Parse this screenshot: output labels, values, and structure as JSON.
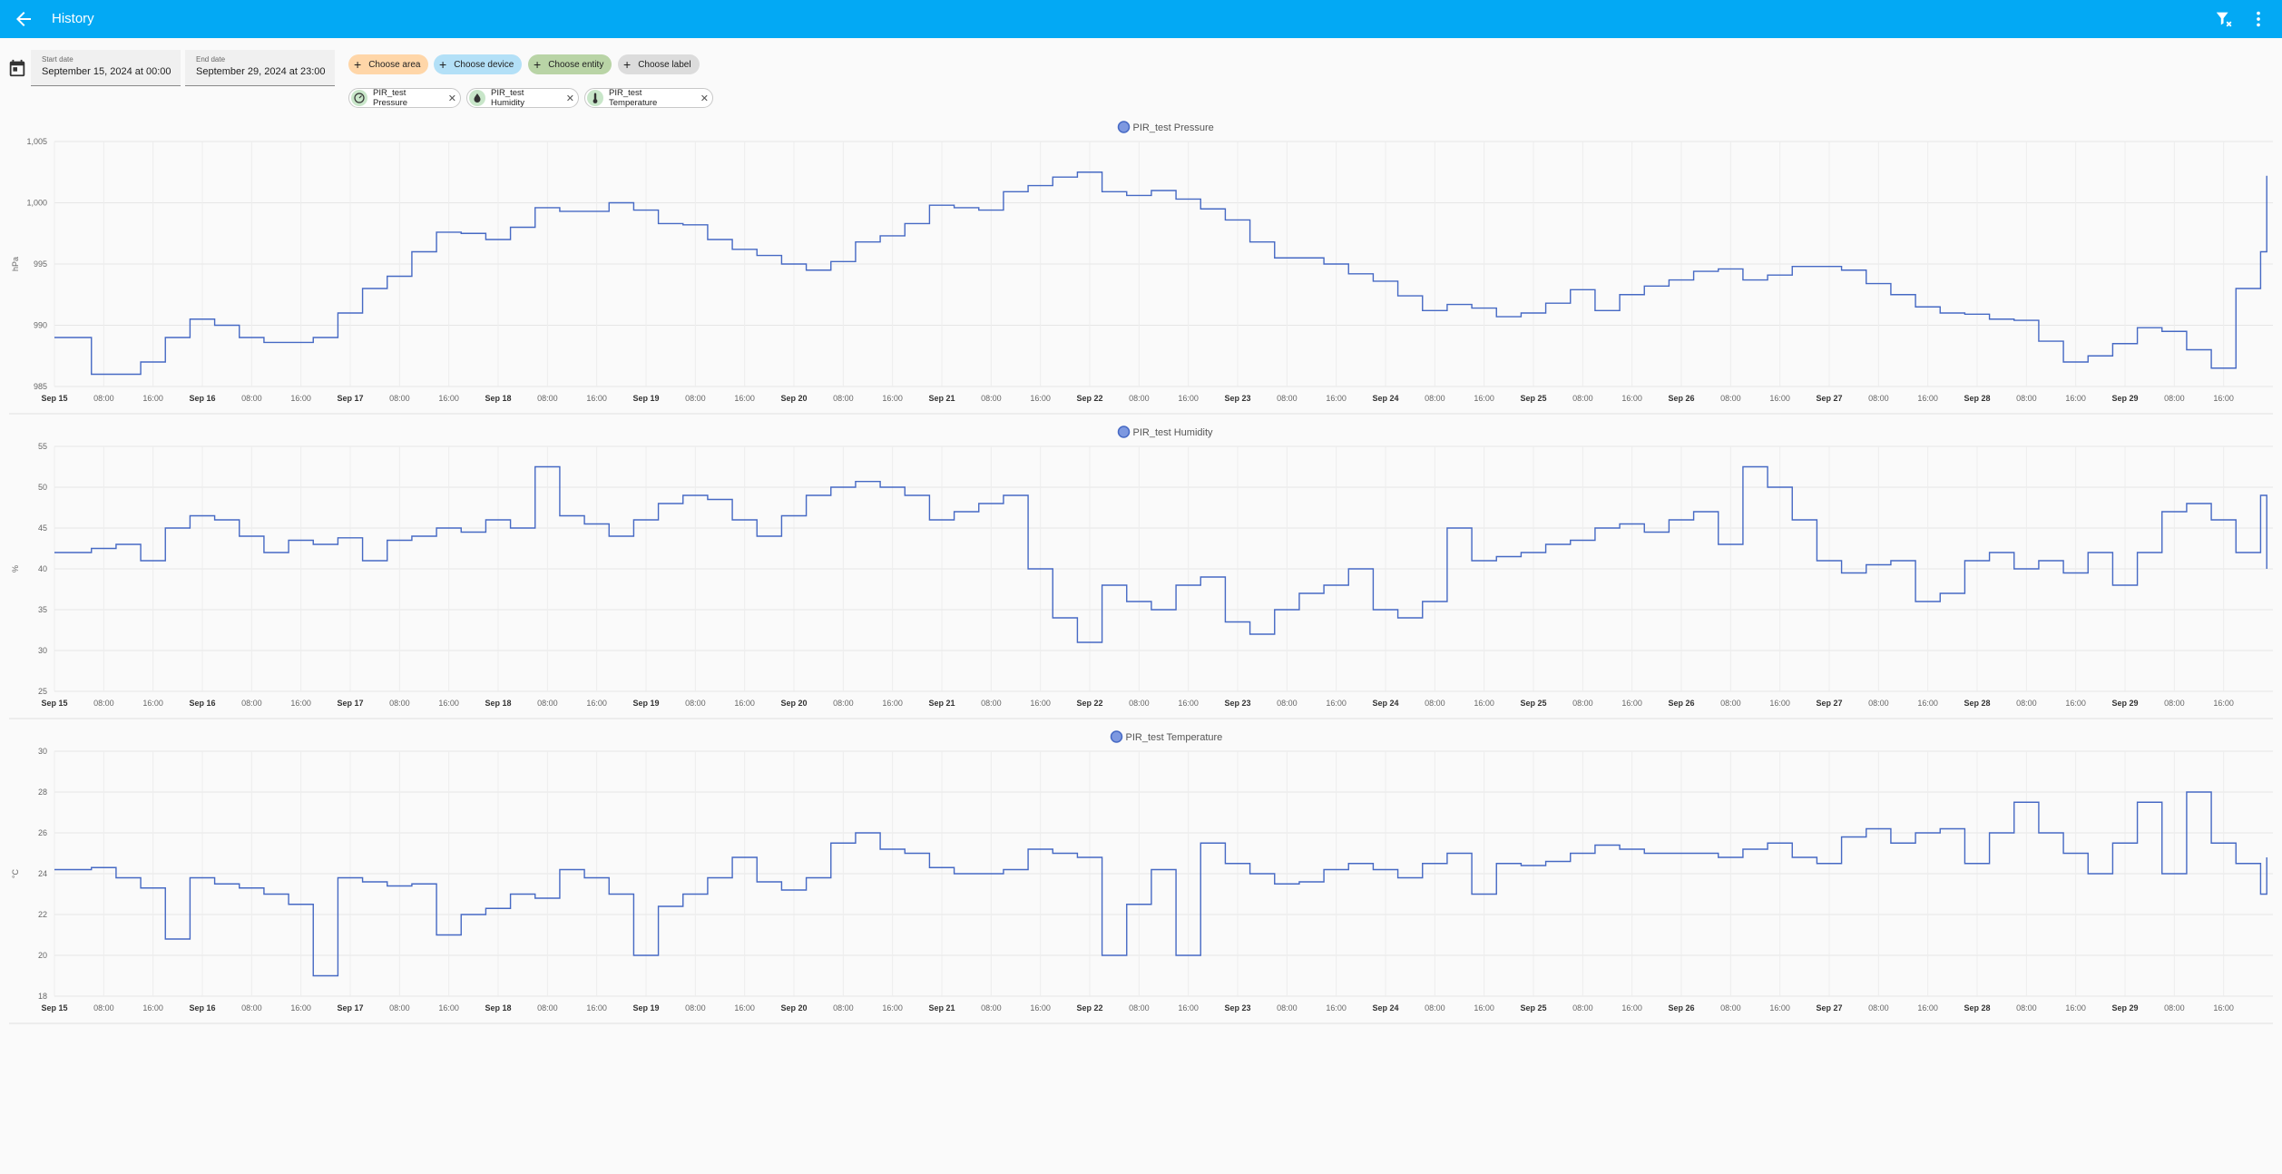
{
  "header": {
    "title": "History",
    "back_icon": "arrow-left-icon",
    "filter_icon": "filter-remove-icon",
    "more_icon": "dots-vertical-icon",
    "bg_color": "#03a9f4"
  },
  "controls": {
    "start_date": {
      "label": "Start date",
      "value": "September 15, 2024 at 00:00"
    },
    "end_date": {
      "label": "End date",
      "value": "September 29, 2024 at 23:00"
    },
    "chips": [
      {
        "label": "Choose area",
        "color": "#ffd6a8"
      },
      {
        "label": "Choose device",
        "color": "#b3e0f7"
      },
      {
        "label": "Choose entity",
        "color": "#b9d4a6"
      },
      {
        "label": "Choose label",
        "color": "#dcdcdc"
      }
    ],
    "entities": [
      {
        "label": "PIR_test Pressure",
        "icon": "gauge-icon"
      },
      {
        "label": "PIR_test Humidity",
        "icon": "water-drop-icon"
      },
      {
        "label": "PIR_test Temperature",
        "icon": "thermometer-icon"
      }
    ]
  },
  "chart_data": [
    {
      "type": "line",
      "title": "PIR_test Pressure",
      "ylabel": "hPa",
      "ylim": [
        985,
        1005
      ],
      "yticks": [
        "985",
        "990",
        "995",
        "1,000",
        "1,005"
      ],
      "xticks": [
        "Sep 15",
        "08:00",
        "16:00",
        "Sep 16",
        "08:00",
        "16:00",
        "Sep 17",
        "08:00",
        "16:00",
        "Sep 18",
        "08:00",
        "16:00",
        "Sep 19",
        "08:00",
        "16:00",
        "Sep 20",
        "08:00",
        "16:00",
        "Sep 21",
        "08:00",
        "16:00",
        "Sep 22",
        "08:00",
        "16:00",
        "Sep 23",
        "08:00",
        "16:00",
        "Sep 24",
        "08:00",
        "16:00",
        "Sep 25",
        "08:00",
        "16:00",
        "Sep 26",
        "08:00",
        "16:00",
        "Sep 27",
        "08:00",
        "16:00",
        "Sep 28",
        "08:00",
        "16:00",
        "Sep 29",
        "08:00",
        "16:00"
      ],
      "x_hours": [
        0,
        6,
        10,
        14,
        18,
        22,
        26,
        30,
        34,
        38,
        42,
        46,
        50,
        54,
        58,
        62,
        66,
        70,
        74,
        78,
        82,
        86,
        90,
        94,
        98,
        102,
        106,
        110,
        114,
        118,
        122,
        126,
        130,
        134,
        138,
        142,
        146,
        150,
        154,
        158,
        162,
        166,
        170,
        174,
        178,
        182,
        186,
        190,
        194,
        198,
        202,
        206,
        210,
        214,
        218,
        222,
        226,
        230,
        234,
        238,
        242,
        246,
        250,
        254,
        258,
        262,
        266,
        270,
        274,
        278,
        282,
        286,
        290,
        294,
        298,
        302,
        306,
        310,
        314,
        318,
        322,
        326,
        330,
        334,
        338,
        342,
        346,
        350,
        354,
        358,
        359
      ],
      "series": [
        {
          "name": "PIR_test Pressure",
          "color": "#4669c4",
          "values": [
            989,
            986,
            986,
            987,
            989,
            990.5,
            990,
            989,
            988.6,
            988.6,
            989,
            991,
            993,
            994,
            996,
            997.6,
            997.5,
            997,
            998,
            999.6,
            999.3,
            999.3,
            1000,
            999.4,
            998.3,
            998.2,
            997,
            996.2,
            995.7,
            995,
            994.5,
            995.2,
            996.8,
            997.3,
            998.3,
            999.8,
            999.6,
            999.4,
            1000.9,
            1001.4,
            1002.1,
            1002.5,
            1000.9,
            1000.6,
            1001,
            1000.3,
            999.5,
            998.6,
            996.8,
            995.5,
            995.5,
            995,
            994.2,
            993.6,
            992.4,
            991.2,
            991.7,
            991.4,
            990.7,
            991,
            991.8,
            992.9,
            991.2,
            992.5,
            993.2,
            993.7,
            994.4,
            994.6,
            993.7,
            994.1,
            994.8,
            994.8,
            994.5,
            993.4,
            992.5,
            991.5,
            991,
            990.9,
            990.5,
            990.4,
            988.7,
            987,
            987.5,
            988.5,
            989.8,
            989.5,
            988,
            986.5,
            993,
            996,
            1002.2
          ]
        }
      ]
    },
    {
      "type": "line",
      "title": "PIR_test Humidity",
      "ylabel": "%",
      "ylim": [
        25,
        55
      ],
      "yticks": [
        "25",
        "30",
        "35",
        "40",
        "45",
        "50",
        "55"
      ],
      "xticks": [
        "Sep 15",
        "08:00",
        "16:00",
        "Sep 16",
        "08:00",
        "16:00",
        "Sep 17",
        "08:00",
        "16:00",
        "Sep 18",
        "08:00",
        "16:00",
        "Sep 19",
        "08:00",
        "16:00",
        "Sep 20",
        "08:00",
        "16:00",
        "Sep 21",
        "08:00",
        "16:00",
        "Sep 22",
        "08:00",
        "16:00",
        "Sep 23",
        "08:00",
        "16:00",
        "Sep 24",
        "08:00",
        "16:00",
        "Sep 25",
        "08:00",
        "16:00",
        "Sep 26",
        "08:00",
        "16:00",
        "Sep 27",
        "08:00",
        "16:00",
        "Sep 28",
        "08:00",
        "16:00",
        "Sep 29",
        "08:00",
        "16:00"
      ],
      "x_hours": [
        0,
        6,
        10,
        14,
        18,
        22,
        26,
        30,
        34,
        38,
        42,
        46,
        50,
        54,
        58,
        62,
        66,
        70,
        74,
        78,
        82,
        86,
        90,
        94,
        98,
        102,
        106,
        110,
        114,
        118,
        122,
        126,
        130,
        134,
        138,
        142,
        146,
        150,
        154,
        158,
        162,
        166,
        170,
        174,
        178,
        182,
        186,
        190,
        194,
        198,
        202,
        206,
        210,
        214,
        218,
        222,
        226,
        230,
        234,
        238,
        242,
        246,
        250,
        254,
        258,
        262,
        266,
        270,
        274,
        278,
        282,
        286,
        290,
        294,
        298,
        302,
        306,
        310,
        314,
        318,
        322,
        326,
        330,
        334,
        338,
        342,
        346,
        350,
        354,
        358,
        359
      ],
      "series": [
        {
          "name": "PIR_test Humidity",
          "color": "#4669c4",
          "values": [
            42,
            42.5,
            43,
            41,
            45,
            46.5,
            46,
            44,
            42,
            43.5,
            43,
            43.8,
            41,
            43.5,
            44,
            45,
            44.5,
            46,
            45,
            52.5,
            46.5,
            45.5,
            44,
            46,
            48,
            49,
            48.5,
            46,
            44,
            46.5,
            49,
            50,
            50.7,
            50,
            49,
            46,
            47,
            48,
            49,
            40,
            34,
            31,
            38,
            36,
            35,
            38,
            39,
            33.5,
            32,
            35,
            37,
            38,
            40,
            35,
            34,
            36,
            45,
            41,
            41.5,
            42,
            43,
            43.5,
            45,
            45.5,
            44.5,
            46,
            47,
            43,
            52.5,
            50,
            46,
            41,
            39.5,
            40.5,
            41,
            36,
            37,
            41,
            42,
            40,
            41,
            39.5,
            42,
            38,
            42,
            47,
            48,
            46,
            42,
            49,
            40
          ]
        }
      ]
    },
    {
      "type": "line",
      "title": "PIR_test Temperature",
      "ylabel": "°C",
      "ylim": [
        18,
        30
      ],
      "yticks": [
        "18",
        "20",
        "22",
        "24",
        "26",
        "28",
        "30"
      ],
      "xticks": [
        "Sep 15",
        "08:00",
        "16:00",
        "Sep 16",
        "08:00",
        "16:00",
        "Sep 17",
        "08:00",
        "16:00",
        "Sep 18",
        "08:00",
        "16:00",
        "Sep 19",
        "08:00",
        "16:00",
        "Sep 20",
        "08:00",
        "16:00",
        "Sep 21",
        "08:00",
        "16:00",
        "Sep 22",
        "08:00",
        "16:00",
        "Sep 23",
        "08:00",
        "16:00",
        "Sep 24",
        "08:00",
        "16:00",
        "Sep 25",
        "08:00",
        "16:00",
        "Sep 26",
        "08:00",
        "16:00",
        "Sep 27",
        "08:00",
        "16:00",
        "Sep 28",
        "08:00",
        "16:00",
        "Sep 29",
        "08:00",
        "16:00"
      ],
      "x_hours": [
        0,
        6,
        10,
        14,
        18,
        22,
        26,
        30,
        34,
        38,
        42,
        46,
        50,
        54,
        58,
        62,
        66,
        70,
        74,
        78,
        82,
        86,
        90,
        94,
        98,
        102,
        106,
        110,
        114,
        118,
        122,
        126,
        130,
        134,
        138,
        142,
        146,
        150,
        154,
        158,
        162,
        166,
        170,
        174,
        178,
        182,
        186,
        190,
        194,
        198,
        202,
        206,
        210,
        214,
        218,
        222,
        226,
        230,
        234,
        238,
        242,
        246,
        250,
        254,
        258,
        262,
        266,
        270,
        274,
        278,
        282,
        286,
        290,
        294,
        298,
        302,
        306,
        310,
        314,
        318,
        322,
        326,
        330,
        334,
        338,
        342,
        346,
        350,
        354,
        358,
        359
      ],
      "series": [
        {
          "name": "PIR_test Temperature",
          "color": "#4669c4",
          "values": [
            24.2,
            24.3,
            23.8,
            23.3,
            20.8,
            23.8,
            23.5,
            23.3,
            23,
            22.5,
            19,
            23.8,
            23.6,
            23.4,
            23.5,
            21,
            22,
            22.3,
            23,
            22.8,
            24.2,
            23.8,
            23,
            20,
            22.4,
            23,
            23.8,
            24.8,
            23.6,
            23.2,
            23.8,
            25.5,
            26,
            25.2,
            25,
            24.3,
            24,
            24,
            24.2,
            25.2,
            25,
            24.8,
            20,
            22.5,
            24.2,
            20,
            25.5,
            24.5,
            24,
            23.5,
            23.6,
            24.2,
            24.5,
            24.2,
            23.8,
            24.5,
            25,
            23,
            24.5,
            24.4,
            24.6,
            25,
            25.4,
            25.2,
            25,
            25,
            25,
            24.8,
            25.2,
            25.5,
            24.8,
            24.5,
            25.8,
            26.2,
            25.5,
            26,
            26.2,
            24.5,
            26,
            27.5,
            26,
            25,
            24,
            25.5,
            27.5,
            24,
            28,
            25.5,
            24.5,
            23,
            24.8
          ]
        }
      ]
    }
  ]
}
